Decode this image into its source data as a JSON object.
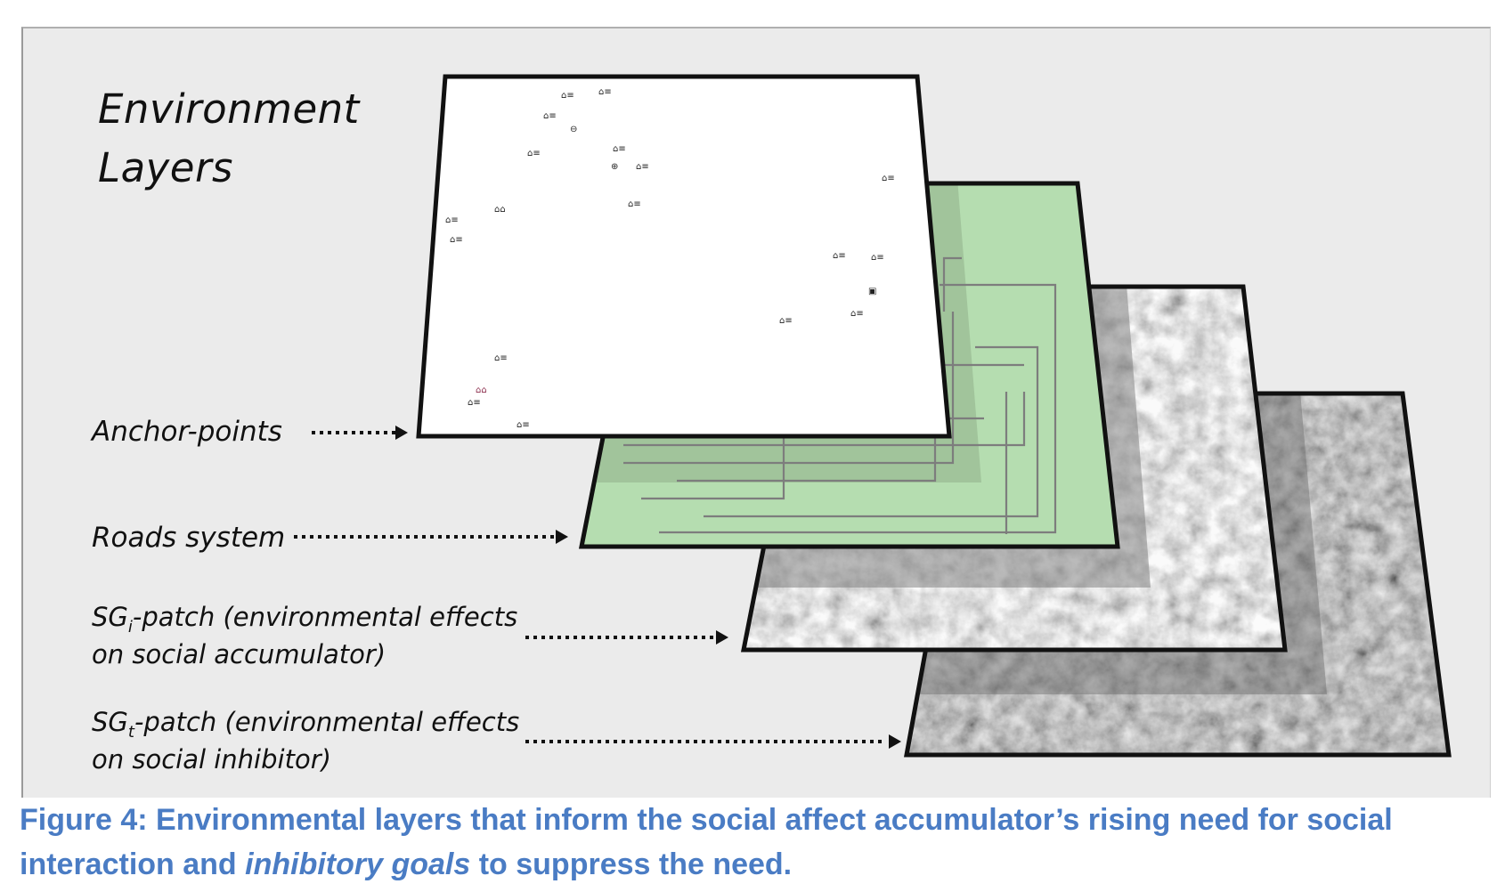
{
  "diagram": {
    "title": [
      "Environment",
      "Layers"
    ],
    "layers": [
      {
        "id": "anchor-points",
        "label": "Anchor-points",
        "fill": "#ffffff"
      },
      {
        "id": "roads-system",
        "label": "Roads system",
        "fill": "#b5ddb0"
      },
      {
        "id": "sgi-patch",
        "label_base": "SG",
        "label_sub": "i",
        "label_rest": "-patch (environmental effects",
        "label_line2": "on social accumulator)",
        "fill": "#c9c9c9"
      },
      {
        "id": "sgt-patch",
        "label_base": "SG",
        "label_sub": "t",
        "label_rest": "-patch (environmental effects",
        "label_line2": "on social inhibitor)",
        "fill": "#9d9d9d"
      }
    ],
    "colors": {
      "border": "#111111",
      "arrow": "#111111",
      "road_line": "#7d7d7d",
      "caption": "#4a7cc4"
    }
  },
  "caption": {
    "part1": "Figure 4: Environmental layers that inform the social affect accumulator’s rising need for social interaction and ",
    "emphasis": "inhibitory goals",
    "part2": " to suppress the need."
  }
}
